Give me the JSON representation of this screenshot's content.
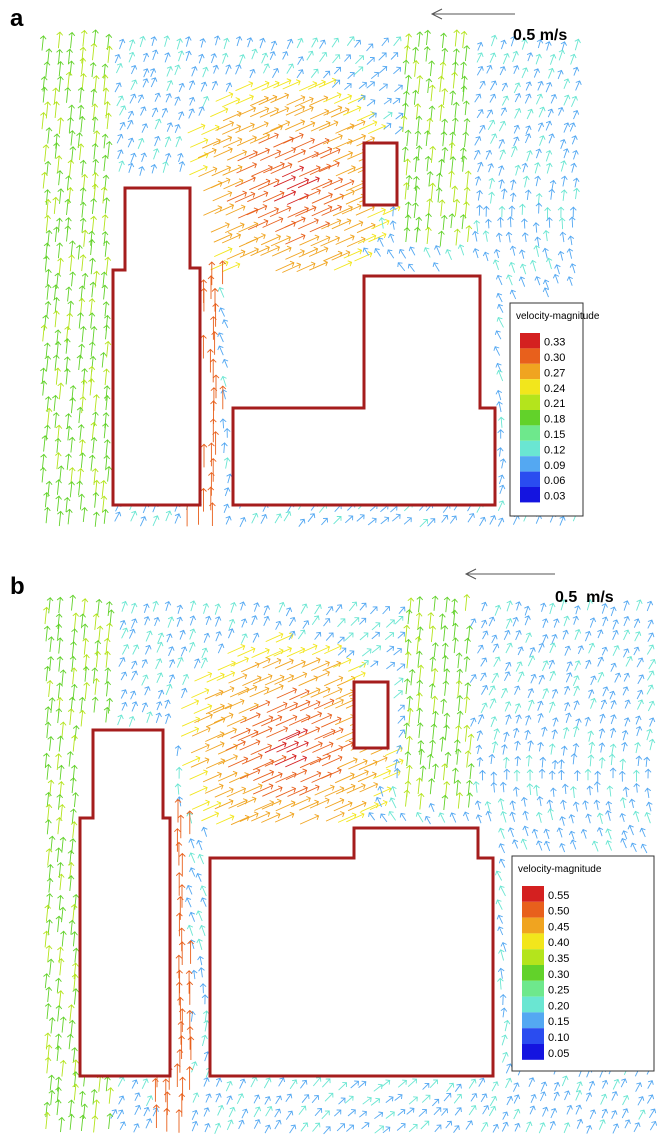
{
  "panels": [
    {
      "label": "a",
      "scale_label": "0.5 m/s",
      "legend": {
        "title": "velocity-magnitude",
        "items": [
          {
            "label": "0.33",
            "color": "#d42020"
          },
          {
            "label": "0.30",
            "color": "#e8601c"
          },
          {
            "label": "0.27",
            "color": "#f0a420"
          },
          {
            "label": "0.24",
            "color": "#f2e61c"
          },
          {
            "label": "0.21",
            "color": "#b4e41c"
          },
          {
            "label": "0.18",
            "color": "#62d22a"
          },
          {
            "label": "0.15",
            "color": "#6ee88c"
          },
          {
            "label": "0.12",
            "color": "#6ae6d2"
          },
          {
            "label": "0.09",
            "color": "#54a8f2"
          },
          {
            "label": "0.06",
            "color": "#2a4cf0"
          },
          {
            "label": "0.03",
            "color": "#1414e0"
          }
        ]
      }
    },
    {
      "label": "b",
      "scale_label": "0.5  m/s",
      "legend": {
        "title": "velocity-magnitude",
        "items": [
          {
            "label": "0.55",
            "color": "#d42020"
          },
          {
            "label": "0.50",
            "color": "#e8601c"
          },
          {
            "label": "0.45",
            "color": "#f0a420"
          },
          {
            "label": "0.40",
            "color": "#f2e61c"
          },
          {
            "label": "0.35",
            "color": "#b4e41c"
          },
          {
            "label": "0.30",
            "color": "#62d22a"
          },
          {
            "label": "0.25",
            "color": "#6ee88c"
          },
          {
            "label": "0.20",
            "color": "#6ae6d2"
          },
          {
            "label": "0.15",
            "color": "#54a8f2"
          },
          {
            "label": "0.10",
            "color": "#2a4cf0"
          },
          {
            "label": "0.05",
            "color": "#1414e0"
          }
        ]
      }
    }
  ]
}
